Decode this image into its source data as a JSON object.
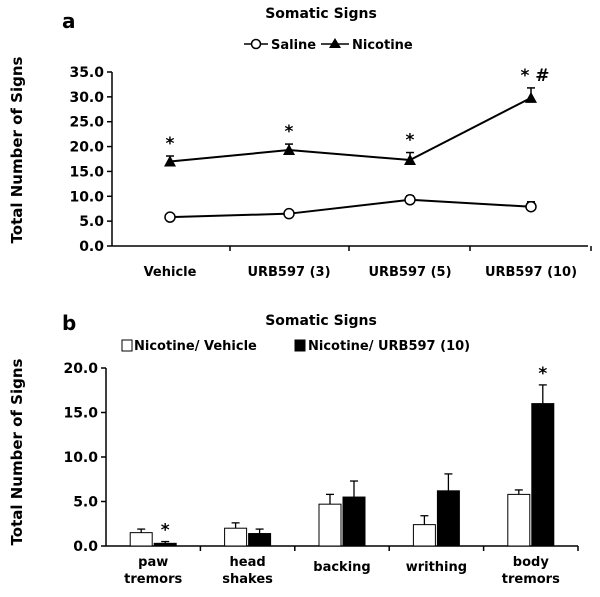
{
  "chart_data": [
    {
      "panel": "a",
      "type": "line",
      "title": "Somatic Signs",
      "ylabel": "Total Number of Signs",
      "xlabel": "",
      "ylim": [
        0,
        35
      ],
      "yticks": [
        "0.0",
        "5.0",
        "10.0",
        "15.0",
        "20.0",
        "25.0",
        "30.0",
        "35.0"
      ],
      "categories": [
        "Vehicle",
        "URB597 (3)",
        "URB597 (5)",
        "URB597 (10)"
      ],
      "legend_position": "top-center",
      "grid": false,
      "series": [
        {
          "name": "Saline",
          "marker": "circle-open",
          "values": [
            5.8,
            6.5,
            9.3,
            7.9
          ],
          "errors": [
            0.4,
            0.4,
            0.8,
            1.0
          ]
        },
        {
          "name": "Nicotine",
          "marker": "triangle-filled",
          "values": [
            17.0,
            19.3,
            17.3,
            29.8
          ],
          "errors": [
            1.1,
            1.2,
            1.5,
            2.0
          ]
        }
      ],
      "annotations": [
        {
          "category": 0,
          "series": "Nicotine",
          "text": "*"
        },
        {
          "category": 1,
          "series": "Nicotine",
          "text": "*"
        },
        {
          "category": 2,
          "series": "Nicotine",
          "text": "*"
        },
        {
          "category": 3,
          "series": "Nicotine",
          "text": "* #"
        }
      ]
    },
    {
      "panel": "b",
      "type": "bar",
      "title": "Somatic Signs",
      "ylabel": "Total Number of Signs",
      "xlabel": "",
      "ylim": [
        0,
        20
      ],
      "yticks": [
        "0.0",
        "5.0",
        "10.0",
        "15.0",
        "20.0"
      ],
      "categories": [
        [
          "paw",
          "tremors"
        ],
        [
          "head",
          "shakes"
        ],
        [
          "backing"
        ],
        [
          "writhing"
        ],
        [
          "body",
          "tremors"
        ]
      ],
      "legend_position": "top-center",
      "grid": false,
      "series": [
        {
          "name": "Nicotine/ Vehicle",
          "color": "#ffffff",
          "values": [
            1.5,
            2.0,
            4.7,
            2.4,
            5.8
          ],
          "errors": [
            0.4,
            0.6,
            1.1,
            1.0,
            0.5
          ]
        },
        {
          "name": "Nicotine/ URB597 (10)",
          "color": "#000000",
          "values": [
            0.3,
            1.4,
            5.5,
            6.2,
            16.0
          ],
          "errors": [
            0.2,
            0.5,
            1.8,
            1.9,
            2.1
          ]
        }
      ],
      "annotations": [
        {
          "category": 0,
          "series": "Nicotine/ URB597 (10)",
          "text": "*"
        },
        {
          "category": 4,
          "series": "Nicotine/ URB597 (10)",
          "text": "*"
        }
      ]
    }
  ]
}
